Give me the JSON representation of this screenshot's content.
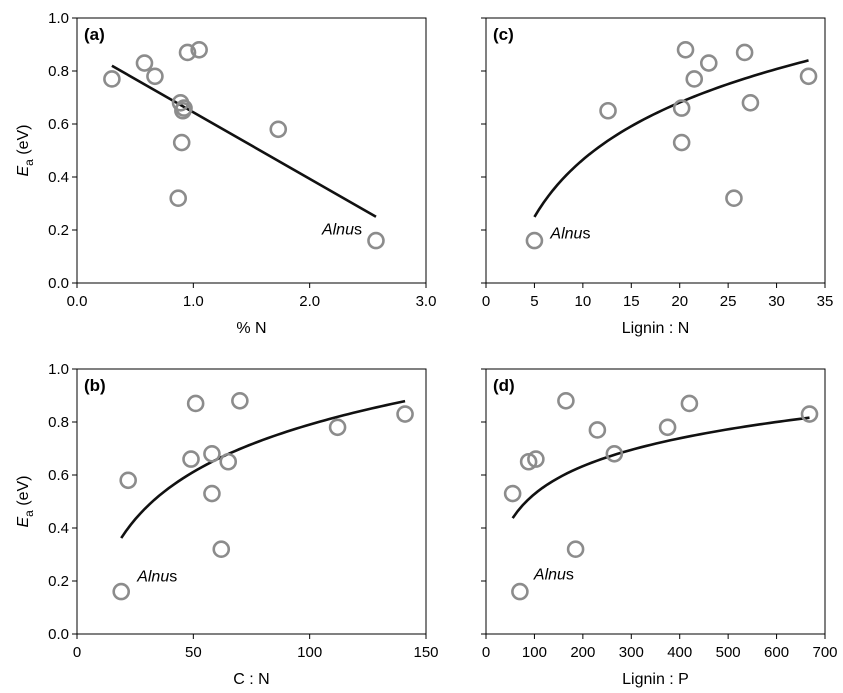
{
  "chart_data": [
    {
      "id": "a",
      "type": "scatter",
      "panel_label": "(a)",
      "xlabel": "% N",
      "ylabel": "E_a (eV)",
      "ylabel_main": "E",
      "ylabel_sub": "a",
      "ylabel_unit": " (eV)",
      "xlim": [
        0,
        3
      ],
      "ylim": [
        0,
        1
      ],
      "xticks": [
        0,
        1,
        2,
        3
      ],
      "xtick_labels": [
        "0.0",
        "1.0",
        "2.0",
        "3.0"
      ],
      "yticks": [
        0,
        0.2,
        0.4,
        0.6,
        0.8,
        1.0
      ],
      "ytick_labels": [
        "0.0",
        "0.2",
        "0.4",
        "0.6",
        "0.8",
        "1.0"
      ],
      "points": [
        {
          "x": 0.3,
          "y": 0.77
        },
        {
          "x": 0.58,
          "y": 0.83
        },
        {
          "x": 0.67,
          "y": 0.78
        },
        {
          "x": 0.95,
          "y": 0.87
        },
        {
          "x": 1.05,
          "y": 0.88
        },
        {
          "x": 0.89,
          "y": 0.68
        },
        {
          "x": 0.92,
          "y": 0.66
        },
        {
          "x": 0.91,
          "y": 0.65
        },
        {
          "x": 0.9,
          "y": 0.53
        },
        {
          "x": 0.87,
          "y": 0.32
        },
        {
          "x": 1.73,
          "y": 0.58
        },
        {
          "x": 2.57,
          "y": 0.16
        }
      ],
      "fit": {
        "kind": "linear",
        "x_range": [
          0.3,
          2.57
        ],
        "y_at_range": [
          0.82,
          0.25
        ]
      },
      "annotation": {
        "italic": "Alnu",
        "normal": "s",
        "x": 2.57,
        "y": 0.16
      }
    },
    {
      "id": "c",
      "type": "scatter",
      "panel_label": "(c)",
      "xlabel": "Lignin : N",
      "ylabel": "",
      "xlim": [
        0,
        35
      ],
      "ylim": [
        0,
        1
      ],
      "xticks": [
        0,
        5,
        10,
        15,
        20,
        25,
        30,
        35
      ],
      "xtick_labels": [
        "0",
        "5",
        "10",
        "15",
        "20",
        "25",
        "30",
        "35"
      ],
      "yticks": [
        0,
        0.2,
        0.4,
        0.6,
        0.8,
        1.0
      ],
      "ytick_labels": [],
      "points": [
        {
          "x": 5.0,
          "y": 0.16
        },
        {
          "x": 12.6,
          "y": 0.65
        },
        {
          "x": 20.6,
          "y": 0.88
        },
        {
          "x": 20.2,
          "y": 0.66
        },
        {
          "x": 21.5,
          "y": 0.77
        },
        {
          "x": 23.0,
          "y": 0.83
        },
        {
          "x": 26.7,
          "y": 0.87
        },
        {
          "x": 27.3,
          "y": 0.68
        },
        {
          "x": 20.2,
          "y": 0.53
        },
        {
          "x": 25.6,
          "y": 0.32
        },
        {
          "x": 33.3,
          "y": 0.78
        }
      ],
      "fit": {
        "kind": "log",
        "x_range": [
          5.0,
          33.3
        ],
        "a": -0.252,
        "b": 0.3115
      },
      "annotation": {
        "italic": "Alnu",
        "normal": "s",
        "x": 5.0,
        "y": 0.16
      }
    },
    {
      "id": "b",
      "type": "scatter",
      "panel_label": "(b)",
      "xlabel": "C : N",
      "ylabel": "E_a (eV)",
      "ylabel_main": "E",
      "ylabel_sub": "a",
      "ylabel_unit": " (eV)",
      "xlim": [
        0,
        150
      ],
      "ylim": [
        0,
        1
      ],
      "xticks": [
        0,
        50,
        100,
        150
      ],
      "xtick_labels": [
        "0",
        "50",
        "100",
        "150"
      ],
      "yticks": [
        0,
        0.2,
        0.4,
        0.6,
        0.8,
        1.0
      ],
      "ytick_labels": [
        "0.0",
        "0.2",
        "0.4",
        "0.6",
        "0.8",
        "1.0"
      ],
      "points": [
        {
          "x": 22,
          "y": 0.58
        },
        {
          "x": 19,
          "y": 0.16
        },
        {
          "x": 51,
          "y": 0.87
        },
        {
          "x": 49,
          "y": 0.66
        },
        {
          "x": 58,
          "y": 0.68
        },
        {
          "x": 58,
          "y": 0.53
        },
        {
          "x": 65,
          "y": 0.65
        },
        {
          "x": 62,
          "y": 0.32
        },
        {
          "x": 70,
          "y": 0.88
        },
        {
          "x": 112,
          "y": 0.78
        },
        {
          "x": 141,
          "y": 0.83
        }
      ],
      "fit": {
        "kind": "log",
        "x_range": [
          19,
          141
        ],
        "a": -0.397,
        "b": 0.2578
      },
      "annotation": {
        "italic": "Alnu",
        "normal": "s",
        "x": 19,
        "y": 0.16
      }
    },
    {
      "id": "d",
      "type": "scatter",
      "panel_label": "(d)",
      "xlabel": "Lignin : P",
      "ylabel": "",
      "xlim": [
        0,
        700
      ],
      "ylim": [
        0,
        1
      ],
      "xticks": [
        0,
        100,
        200,
        300,
        400,
        500,
        600,
        700
      ],
      "xtick_labels": [
        "0",
        "100",
        "200",
        "300",
        "400",
        "500",
        "600",
        "700"
      ],
      "yticks": [
        0,
        0.2,
        0.4,
        0.6,
        0.8,
        1.0
      ],
      "ytick_labels": [],
      "points": [
        {
          "x": 55,
          "y": 0.53
        },
        {
          "x": 70,
          "y": 0.16
        },
        {
          "x": 88,
          "y": 0.65
        },
        {
          "x": 103,
          "y": 0.66
        },
        {
          "x": 165,
          "y": 0.88
        },
        {
          "x": 185,
          "y": 0.32
        },
        {
          "x": 230,
          "y": 0.77
        },
        {
          "x": 265,
          "y": 0.68
        },
        {
          "x": 375,
          "y": 0.78
        },
        {
          "x": 420,
          "y": 0.87
        },
        {
          "x": 668,
          "y": 0.83
        }
      ],
      "fit": {
        "kind": "log",
        "x_range": [
          55,
          668
        ],
        "a": -0.171,
        "b": 0.1518
      },
      "annotation": {
        "italic": "Alnu",
        "normal": "s",
        "x": 70,
        "y": 0.16
      }
    }
  ]
}
